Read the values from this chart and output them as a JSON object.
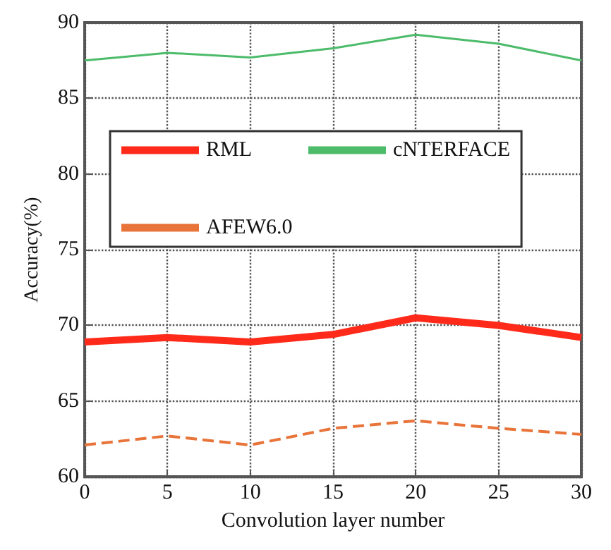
{
  "chart_data": {
    "type": "line",
    "xlabel": "Convolution layer number",
    "ylabel": "Accuracy(%)",
    "x": [
      0,
      5,
      10,
      15,
      20,
      25,
      30
    ],
    "series": [
      {
        "name": "RML",
        "color": "#ff2a1a",
        "line_style": "solid",
        "values": [
          68.9,
          69.2,
          68.9,
          69.4,
          70.5,
          70.0,
          69.2
        ]
      },
      {
        "name": "cNTERFACE",
        "color": "#4cbb6a",
        "line_style": "solid",
        "values": [
          87.5,
          88.0,
          87.7,
          88.3,
          89.2,
          88.6,
          87.5
        ]
      },
      {
        "name": "AFEW6.0",
        "color": "#e8743a",
        "line_style": "dashed",
        "values": [
          62.1,
          62.7,
          62.1,
          63.2,
          63.7,
          63.2,
          62.8
        ]
      }
    ],
    "xlim": [
      0,
      30
    ],
    "xticks": [
      0,
      5,
      10,
      15,
      20,
      25,
      30
    ],
    "ylim": [
      60,
      90
    ],
    "yticks": [
      60,
      65,
      70,
      75,
      80,
      85,
      90
    ],
    "grid": true,
    "legend": "top",
    "marker": "none"
  }
}
